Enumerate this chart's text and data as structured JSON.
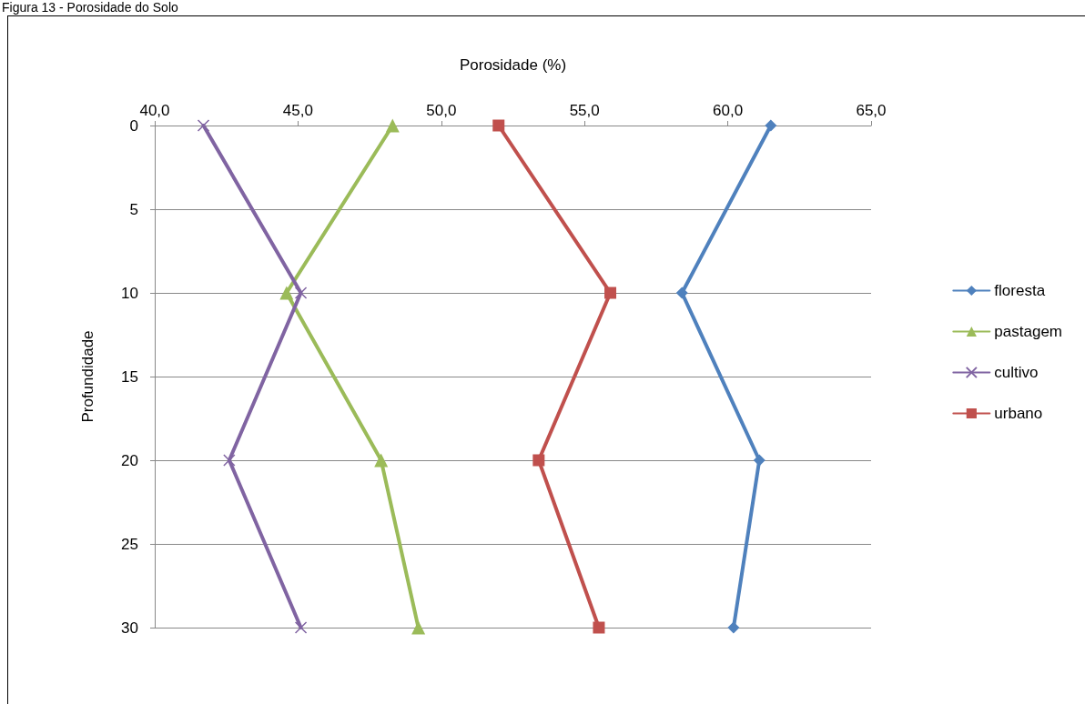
{
  "chart_data": {
    "type": "line",
    "title": "Figura 13 - Porosidade do Solo",
    "xlabel": "Porosidade (%)",
    "ylabel": "Profundidade",
    "xlim": [
      40,
      65
    ],
    "xticks": [
      {
        "value": 40,
        "label": "40,0"
      },
      {
        "value": 45,
        "label": "45,0"
      },
      {
        "value": 50,
        "label": "50,0"
      },
      {
        "value": 55,
        "label": "55,0"
      },
      {
        "value": 60,
        "label": "60,0"
      },
      {
        "value": 65,
        "label": "65,0"
      }
    ],
    "ylim": [
      30,
      0
    ],
    "yticks": [
      0,
      5,
      10,
      15,
      20,
      25,
      30
    ],
    "grid": "y",
    "legend": "right",
    "series": [
      {
        "name": "floresta",
        "color": "#4f81bd",
        "marker": "diamond",
        "x": [
          61.5,
          58.4,
          61.1,
          60.2
        ],
        "values": [
          0,
          10,
          20,
          30
        ]
      },
      {
        "name": "pastagem",
        "color": "#9bbb59",
        "marker": "triangle",
        "x": [
          48.3,
          44.6,
          47.9,
          49.2
        ],
        "values": [
          0,
          10,
          20,
          30
        ]
      },
      {
        "name": "cultivo",
        "color": "#8064a2",
        "marker": "cross",
        "x": [
          41.7,
          45.1,
          42.6,
          45.1
        ],
        "values": [
          0,
          10,
          20,
          30
        ]
      },
      {
        "name": "urbano",
        "color": "#c0504d",
        "marker": "square",
        "x": [
          52.0,
          55.9,
          53.4,
          55.5
        ],
        "values": [
          0,
          10,
          20,
          30
        ]
      }
    ]
  }
}
